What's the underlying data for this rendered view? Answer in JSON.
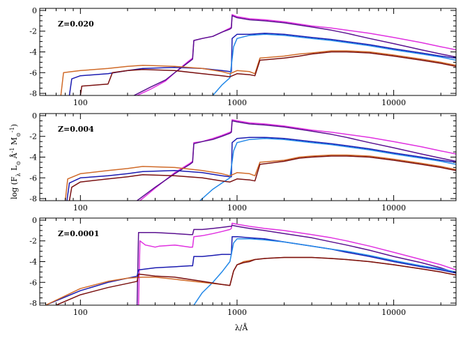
{
  "chart_data": {
    "type": "line",
    "x_scale": "log",
    "xlabel": "λ/Å",
    "ylabel": "log (F_λ L_⊙ Å^-1 M_⊙^-1)",
    "xlim": [
      55,
      25000
    ],
    "ylim": [
      -8.2,
      0.2
    ],
    "x_ticks": [
      100,
      1000,
      10000
    ],
    "y_ticks": [
      0,
      -2,
      -4,
      -6,
      -8
    ],
    "colors": {
      "magenta": "#e030e0",
      "purple": "#5a1090",
      "blue": "#1a1ab0",
      "skyblue": "#2288e8",
      "orange": "#d06a28",
      "darkred": "#7a1010"
    },
    "panels": [
      {
        "label": "Z=0.020",
        "series": [
          {
            "color": "magenta",
            "x": [
              230,
              280,
              350,
              400,
              480,
              520,
              530,
              600,
              700,
              800,
              900,
              920,
              930,
              1000,
              1200,
              1500,
              2000,
              3000,
              4000,
              5000,
              7000,
              10000,
              15000,
              20000,
              25000
            ],
            "y": [
              -8.2,
              -7.6,
              -6.8,
              -6.0,
              -5.0,
              -4.6,
              -2.9,
              -2.7,
              -2.5,
              -2.1,
              -1.7,
              -1.6,
              -0.4,
              -0.6,
              -0.8,
              -0.9,
              -1.1,
              -1.5,
              -1.7,
              -1.9,
              -2.2,
              -2.6,
              -3.1,
              -3.5,
              -3.8
            ]
          },
          {
            "color": "purple",
            "x": [
              220,
              280,
              350,
              400,
              480,
              520,
              530,
              600,
              700,
              800,
              900,
              920,
              930,
              1000,
              1200,
              1500,
              2000,
              3000,
              4000,
              5000,
              7000,
              10000,
              15000,
              20000,
              25000
            ],
            "y": [
              -8.2,
              -7.4,
              -6.7,
              -6.0,
              -5.1,
              -4.7,
              -2.9,
              -2.7,
              -2.5,
              -2.1,
              -1.8,
              -1.7,
              -0.5,
              -0.7,
              -0.9,
              -1.0,
              -1.2,
              -1.6,
              -1.9,
              -2.2,
              -2.7,
              -3.2,
              -3.8,
              -4.2,
              -4.5
            ]
          },
          {
            "color": "blue",
            "x": [
              85,
              88,
              100,
              150,
              200,
              250,
              400,
              600,
              800,
              900,
              920,
              930,
              1000,
              1200,
              1500,
              2000,
              3000,
              4000,
              5000,
              7000,
              10000,
              15000,
              20000,
              25000
            ],
            "y": [
              -8.2,
              -6.6,
              -6.3,
              -6.1,
              -5.8,
              -5.6,
              -5.5,
              -5.6,
              -5.8,
              -5.9,
              -5.9,
              -2.7,
              -2.3,
              -2.3,
              -2.2,
              -2.3,
              -2.6,
              -2.8,
              -3.0,
              -3.3,
              -3.7,
              -4.1,
              -4.4,
              -4.6
            ]
          },
          {
            "color": "skyblue",
            "x": [
              700,
              800,
              900,
              950,
              1000,
              1200,
              1500,
              2000,
              3000,
              4000,
              5000,
              7000,
              10000,
              15000,
              20000,
              25000
            ],
            "y": [
              -8.2,
              -7.2,
              -6.5,
              -3.5,
              -2.7,
              -2.4,
              -2.3,
              -2.4,
              -2.7,
              -2.9,
              -3.1,
              -3.4,
              -3.8,
              -4.2,
              -4.5,
              -4.8
            ]
          },
          {
            "color": "orange",
            "x": [
              75,
              78,
              100,
              150,
              200,
              250,
              400,
              600,
              800,
              900,
              1000,
              1200,
              1300,
              1400,
              2000,
              2500,
              3000,
              4000,
              5000,
              7000,
              10000,
              15000,
              20000,
              25000
            ],
            "y": [
              -8.2,
              -6.0,
              -5.8,
              -5.6,
              -5.4,
              -5.3,
              -5.4,
              -5.6,
              -5.9,
              -6.1,
              -5.8,
              -5.9,
              -6.1,
              -4.6,
              -4.4,
              -4.2,
              -4.1,
              -3.9,
              -3.9,
              -4.0,
              -4.3,
              -4.7,
              -5.0,
              -5.3
            ]
          },
          {
            "color": "darkred",
            "x": [
              100,
              102,
              150,
              160,
              200,
              250,
              400,
              600,
              800,
              900,
              1000,
              1200,
              1300,
              1400,
              2000,
              2500,
              3000,
              4000,
              5000,
              7000,
              10000,
              15000,
              20000,
              25000
            ],
            "y": [
              -8.2,
              -7.3,
              -7.1,
              -6.0,
              -5.8,
              -5.7,
              -5.8,
              -6.1,
              -6.3,
              -6.4,
              -6.1,
              -6.2,
              -6.3,
              -4.8,
              -4.6,
              -4.4,
              -4.2,
              -4.0,
              -4.0,
              -4.1,
              -4.4,
              -4.8,
              -5.1,
              -5.4
            ]
          }
        ]
      },
      {
        "label": "Z=0.004",
        "series": [
          {
            "color": "magenta",
            "x": [
              240,
              300,
              400,
              500,
              520,
              530,
              600,
              700,
              800,
              900,
              920,
              930,
              1000,
              1200,
              1500,
              2000,
              3000,
              4000,
              5000,
              7000,
              10000,
              15000,
              20000,
              25000
            ],
            "y": [
              -8.2,
              -7.0,
              -5.5,
              -4.6,
              -4.4,
              -2.6,
              -2.5,
              -2.2,
              -1.9,
              -1.6,
              -1.5,
              -0.4,
              -0.5,
              -0.7,
              -0.8,
              -1.0,
              -1.4,
              -1.6,
              -1.8,
              -2.1,
              -2.5,
              -3.0,
              -3.4,
              -3.7
            ]
          },
          {
            "color": "purple",
            "x": [
              230,
              300,
              400,
              500,
              520,
              530,
              600,
              700,
              800,
              900,
              920,
              930,
              1000,
              1200,
              1500,
              2000,
              3000,
              4000,
              5000,
              7000,
              10000,
              15000,
              20000,
              25000
            ],
            "y": [
              -8.2,
              -6.9,
              -5.6,
              -4.7,
              -4.5,
              -2.7,
              -2.5,
              -2.3,
              -2.0,
              -1.7,
              -1.6,
              -0.5,
              -0.6,
              -0.8,
              -0.9,
              -1.1,
              -1.5,
              -1.8,
              -2.1,
              -2.6,
              -3.1,
              -3.7,
              -4.1,
              -4.4
            ]
          },
          {
            "color": "blue",
            "x": [
              82,
              85,
              100,
              150,
              200,
              250,
              400,
              600,
              800,
              900,
              920,
              930,
              1000,
              1200,
              1500,
              2000,
              3000,
              4000,
              5000,
              7000,
              10000,
              15000,
              20000,
              25000
            ],
            "y": [
              -8.2,
              -6.5,
              -6.0,
              -5.8,
              -5.6,
              -5.4,
              -5.3,
              -5.5,
              -5.8,
              -5.9,
              -5.9,
              -2.6,
              -2.2,
              -2.1,
              -2.1,
              -2.2,
              -2.5,
              -2.7,
              -2.9,
              -3.2,
              -3.6,
              -4.0,
              -4.3,
              -4.5
            ]
          },
          {
            "color": "skyblue",
            "x": [
              580,
              700,
              800,
              900,
              950,
              1000,
              1200,
              1500,
              2000,
              3000,
              4000,
              5000,
              7000,
              10000,
              15000,
              20000,
              25000
            ],
            "y": [
              -8.2,
              -7.1,
              -6.5,
              -6.0,
              -3.4,
              -2.6,
              -2.3,
              -2.2,
              -2.3,
              -2.6,
              -2.8,
              -3.0,
              -3.3,
              -3.7,
              -4.1,
              -4.4,
              -4.7
            ]
          },
          {
            "color": "orange",
            "x": [
              80,
              83,
              100,
              150,
              200,
              250,
              400,
              600,
              800,
              900,
              1000,
              1200,
              1300,
              1400,
              2000,
              2500,
              3000,
              4000,
              5000,
              7000,
              10000,
              15000,
              20000,
              25000
            ],
            "y": [
              -8.2,
              -6.1,
              -5.6,
              -5.3,
              -5.1,
              -4.9,
              -5.0,
              -5.3,
              -5.6,
              -5.8,
              -5.5,
              -5.6,
              -5.8,
              -4.5,
              -4.3,
              -4.0,
              -3.9,
              -3.8,
              -3.8,
              -3.9,
              -4.2,
              -4.6,
              -4.9,
              -5.2
            ]
          },
          {
            "color": "darkred",
            "x": [
              85,
              88,
              100,
              150,
              200,
              250,
              400,
              600,
              800,
              900,
              1000,
              1200,
              1300,
              1400,
              2000,
              2500,
              3000,
              4000,
              5000,
              7000,
              10000,
              15000,
              20000,
              25000
            ],
            "y": [
              -8.2,
              -6.9,
              -6.4,
              -6.1,
              -5.9,
              -5.7,
              -5.8,
              -6.0,
              -6.3,
              -6.4,
              -6.1,
              -6.2,
              -6.3,
              -4.7,
              -4.4,
              -4.1,
              -4.0,
              -3.9,
              -3.9,
              -4.0,
              -4.3,
              -4.7,
              -5.0,
              -5.3
            ]
          }
        ]
      },
      {
        "label": "Z=0.0001",
        "series": [
          {
            "color": "magenta",
            "x": [
              235,
              240,
              260,
              280,
              300,
              320,
              400,
              500,
              520,
              530,
              600,
              700,
              800,
              900,
              920,
              930,
              1000,
              1200,
              1500,
              2000,
              3000,
              4000,
              5000,
              7000,
              10000,
              15000,
              20000,
              25000
            ],
            "y": [
              -8.2,
              -2.0,
              -2.4,
              -2.5,
              -2.6,
              -2.5,
              -2.4,
              -2.6,
              -2.6,
              -1.6,
              -1.5,
              -1.3,
              -1.1,
              -0.9,
              -0.8,
              -0.3,
              -0.4,
              -0.6,
              -0.8,
              -1.0,
              -1.4,
              -1.7,
              -2.0,
              -2.5,
              -3.1,
              -3.8,
              -4.3,
              -4.8
            ]
          },
          {
            "color": "purple",
            "x": [
              230,
              235,
              300,
              400,
              500,
              520,
              530,
              600,
              700,
              800,
              900,
              920,
              930,
              1000,
              1200,
              1500,
              2000,
              3000,
              4000,
              5000,
              7000,
              10000,
              15000,
              20000,
              25000
            ],
            "y": [
              -8.2,
              -1.2,
              -1.2,
              -1.3,
              -1.4,
              -1.4,
              -0.9,
              -0.9,
              -0.8,
              -0.7,
              -0.6,
              -0.6,
              -0.5,
              -0.6,
              -0.8,
              -1.0,
              -1.3,
              -1.7,
              -2.1,
              -2.4,
              -2.9,
              -3.5,
              -4.1,
              -4.6,
              -5.1
            ]
          },
          {
            "color": "blue",
            "x": [
              60,
              100,
              150,
              200,
              230,
              235,
              300,
              400,
              500,
              520,
              530,
              600,
              700,
              800,
              900,
              920,
              930,
              1000,
              1200,
              1500,
              2000,
              3000,
              4000,
              5000,
              7000,
              10000,
              15000,
              20000,
              25000
            ],
            "y": [
              -8.2,
              -6.8,
              -6.0,
              -5.6,
              -5.4,
              -4.8,
              -4.6,
              -4.5,
              -4.4,
              -4.4,
              -3.5,
              -3.5,
              -3.4,
              -3.3,
              -3.3,
              -3.3,
              -1.6,
              -1.6,
              -1.7,
              -1.8,
              -2.1,
              -2.5,
              -2.8,
              -3.1,
              -3.5,
              -4.0,
              -4.5,
              -4.8,
              -5.1
            ]
          },
          {
            "color": "skyblue",
            "x": [
              530,
              600,
              700,
              800,
              900,
              950,
              1000,
              1200,
              1500,
              2000,
              3000,
              4000,
              5000,
              7000,
              10000,
              15000,
              20000,
              25000
            ],
            "y": [
              -8.2,
              -7.0,
              -6.0,
              -5.0,
              -4.0,
              -2.2,
              -1.8,
              -1.8,
              -1.9,
              -2.1,
              -2.5,
              -2.8,
              -3.0,
              -3.4,
              -3.9,
              -4.4,
              -4.7,
              -5.0
            ]
          },
          {
            "color": "orange",
            "x": [
              60,
              100,
              150,
              200,
              250,
              300,
              400,
              600,
              800,
              900,
              950,
              1000,
              1100,
              1200,
              1300,
              1500,
              2000,
              3000,
              4000,
              5000,
              7000,
              10000,
              15000,
              20000,
              25000
            ],
            "y": [
              -8.2,
              -6.6,
              -5.9,
              -5.6,
              -5.5,
              -5.5,
              -5.7,
              -6.0,
              -6.2,
              -6.3,
              -4.9,
              -4.3,
              -4.0,
              -3.9,
              -3.8,
              -3.7,
              -3.6,
              -3.6,
              -3.7,
              -3.8,
              -4.0,
              -4.3,
              -4.7,
              -5.0,
              -5.3
            ]
          },
          {
            "color": "darkred",
            "x": [
              70,
              100,
              150,
              200,
              230,
              235,
              300,
              400,
              600,
              800,
              900,
              950,
              1000,
              1100,
              1200,
              1300,
              1500,
              2000,
              3000,
              4000,
              5000,
              7000,
              10000,
              15000,
              20000,
              25000
            ],
            "y": [
              -8.2,
              -7.2,
              -6.5,
              -6.1,
              -5.9,
              -5.2,
              -5.4,
              -5.5,
              -5.9,
              -6.2,
              -6.3,
              -4.9,
              -4.3,
              -4.1,
              -4.0,
              -3.8,
              -3.7,
              -3.6,
              -3.6,
              -3.7,
              -3.8,
              -4.0,
              -4.3,
              -4.7,
              -5.0,
              -5.3
            ]
          }
        ]
      }
    ]
  }
}
